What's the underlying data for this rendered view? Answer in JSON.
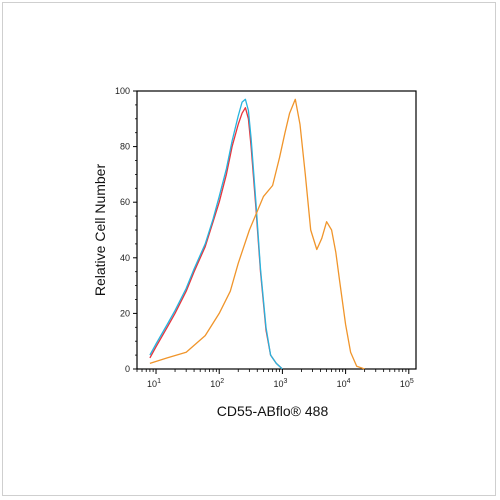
{
  "chart_data": {
    "type": "line",
    "title": "",
    "xlabel": "CD55-ABflo® 488",
    "ylabel": "Relative Cell Number",
    "x_scale": "log",
    "xlim": [
      5,
      130000
    ],
    "ylim": [
      0,
      100
    ],
    "y_ticks": [
      "0",
      "20",
      "40",
      "60",
      "80",
      "100"
    ],
    "x_ticks": [
      {
        "value": 10,
        "base": "10",
        "exp": "1"
      },
      {
        "value": 100,
        "base": "10",
        "exp": "2"
      },
      {
        "value": 1000,
        "base": "10",
        "exp": "3"
      },
      {
        "value": 10000,
        "base": "10",
        "exp": "4"
      },
      {
        "value": 100000,
        "base": "10",
        "exp": "5"
      }
    ],
    "grid": false,
    "legend": "none",
    "series": [
      {
        "color": "#e8343c",
        "x": [
          8,
          10,
          15,
          20,
          30,
          40,
          60,
          80,
          100,
          130,
          160,
          200,
          230,
          260,
          290,
          320,
          380,
          450,
          550,
          650,
          800,
          1000
        ],
        "y": [
          4,
          8,
          15,
          20,
          28,
          35,
          44,
          53,
          60,
          70,
          80,
          88,
          92,
          94,
          90,
          80,
          58,
          35,
          14,
          5,
          2,
          0
        ]
      },
      {
        "color": "#27b4de",
        "x": [
          8,
          10,
          15,
          20,
          30,
          40,
          60,
          80,
          100,
          130,
          160,
          200,
          230,
          260,
          290,
          320,
          380,
          450,
          550,
          650,
          800,
          1000
        ],
        "y": [
          5,
          9,
          16,
          21,
          29,
          36,
          45,
          54,
          62,
          72,
          82,
          91,
          96,
          97,
          93,
          83,
          60,
          36,
          15,
          5,
          2,
          0
        ]
      },
      {
        "color": "#f0952b",
        "x": [
          8,
          15,
          30,
          60,
          100,
          150,
          200,
          300,
          500,
          700,
          900,
          1100,
          1300,
          1600,
          1900,
          2300,
          2800,
          3500,
          4200,
          5000,
          6000,
          7000,
          8000,
          10000,
          12000,
          15000,
          20000
        ],
        "y": [
          2,
          4,
          6,
          12,
          20,
          28,
          38,
          50,
          62,
          66,
          76,
          85,
          92,
          97,
          88,
          70,
          50,
          43,
          47,
          53,
          50,
          42,
          32,
          16,
          6,
          1,
          0
        ]
      }
    ]
  }
}
